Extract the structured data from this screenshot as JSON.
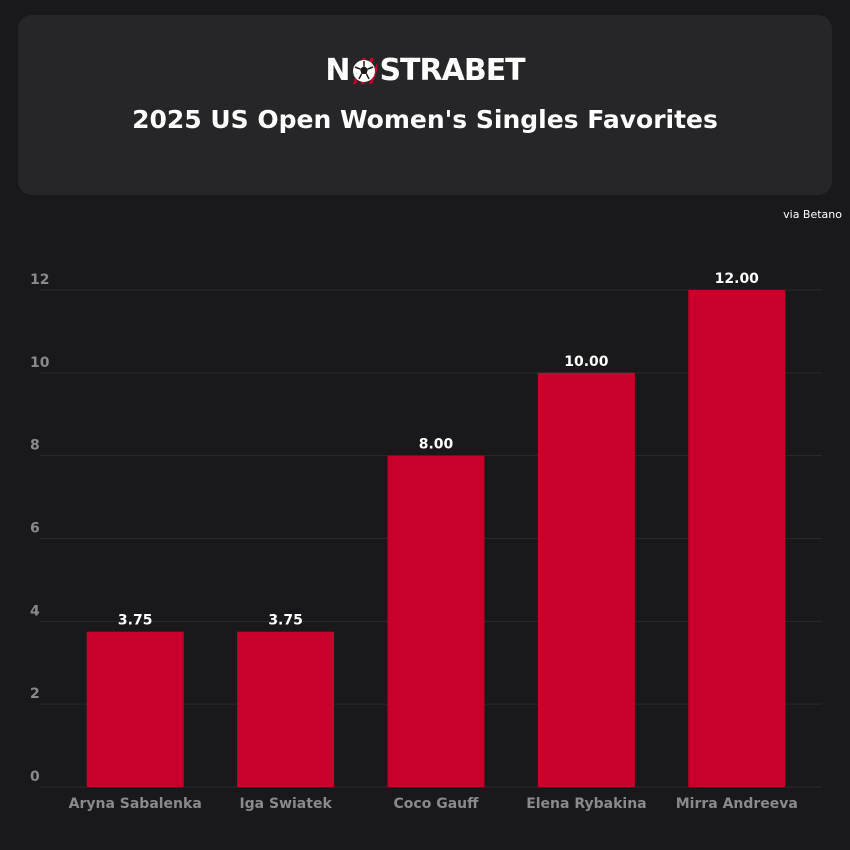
{
  "header": {
    "logo_left": "N",
    "logo_right": "STRABET",
    "title": "2025 US Open Women's Singles Favorites",
    "source": "via Betano"
  },
  "colors": {
    "bar": "#c8002a",
    "background": "#19191b",
    "card": "#262629",
    "tick": "#8a8a8c",
    "grid": "#2a2a2d"
  },
  "chart_data": {
    "type": "bar",
    "categories": [
      "Aryna Sabalenka",
      "Iga Swiatek",
      "Coco Gauff",
      "Elena Rybakina",
      "Mirra Andreeva"
    ],
    "values": [
      3.75,
      3.75,
      8.0,
      10.0,
      12.0
    ],
    "value_labels": [
      "3.75",
      "3.75",
      "8.00",
      "10.00",
      "12.00"
    ],
    "yticks": [
      0,
      2,
      4,
      6,
      8,
      10,
      12
    ],
    "ylim": [
      0,
      12
    ],
    "grid": true,
    "legend": "none"
  }
}
